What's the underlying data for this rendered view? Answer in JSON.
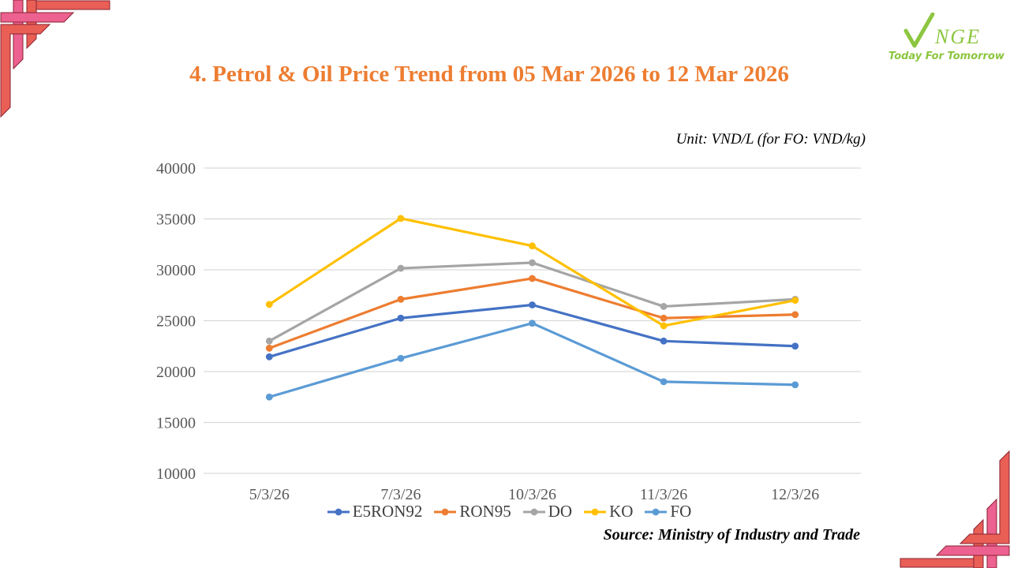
{
  "page": {
    "title": "4. Petrol & Oil Price Trend from 05 Mar 2026 to 12 Mar 2026",
    "unit_note": "Unit: VND/L (for FO: VND/kg)",
    "source": "Source: Ministry of Industry and Trade"
  },
  "logo": {
    "brand_check": "check-glyph",
    "brand_rest": "NGE",
    "tagline": "Today For Tomorrow",
    "color": "#8CC63F"
  },
  "colors": {
    "title": "#ED7D31",
    "axis_text": "#595959",
    "legend_text": "#404040",
    "gridline": "#D9D9D9",
    "ornament_pink": "#EC6190",
    "ornament_salmon": "#E95F55",
    "ornament_outline": "#8A2232"
  },
  "chart_data": {
    "type": "line",
    "title": "",
    "xlabel": "",
    "ylabel": "",
    "categories": [
      "5/3/26",
      "7/3/26",
      "10/3/26",
      "11/3/26",
      "12/3/26"
    ],
    "series": [
      {
        "name": "E5RON92",
        "color": "#4472C4",
        "values": [
          21450,
          25250,
          26550,
          23000,
          22500
        ]
      },
      {
        "name": "RON95",
        "color": "#ED7D31",
        "values": [
          22300,
          27100,
          29150,
          25250,
          25600
        ]
      },
      {
        "name": "DO",
        "color": "#A5A5A5",
        "values": [
          23000,
          30150,
          30700,
          26400,
          27100
        ]
      },
      {
        "name": "KO",
        "color": "#FFC000",
        "values": [
          26600,
          35050,
          32350,
          24500,
          27000
        ]
      },
      {
        "name": "FO",
        "color": "#5B9BD5",
        "values": [
          17500,
          21300,
          24750,
          19000,
          18700
        ]
      }
    ],
    "ylim": [
      10000,
      40000
    ],
    "ytick_step": 5000,
    "grid": true,
    "legend_position": "bottom",
    "marker": "circle"
  }
}
